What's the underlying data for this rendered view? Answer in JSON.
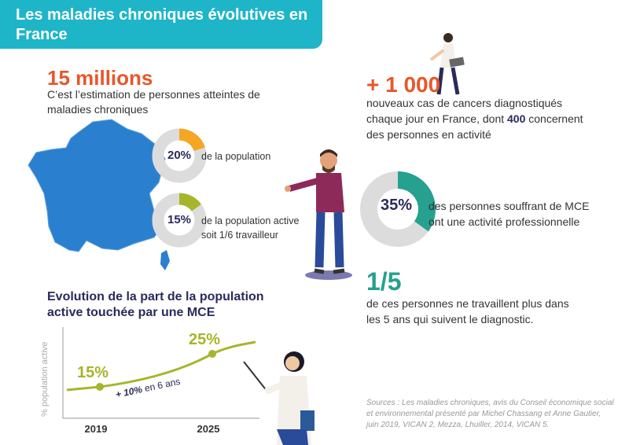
{
  "header": {
    "title": "Les maladies chroniques évolutives en France"
  },
  "stat_millions": {
    "value": "15 millions",
    "description": "C’est l’estimation de personnes atteintes de maladies chroniques"
  },
  "donut_population": {
    "percent_label": "20%",
    "value": 20,
    "caption": "de la population",
    "color": "#f5a623"
  },
  "donut_active": {
    "percent_label": "15%",
    "value": 15,
    "caption_line1": "de la population active",
    "caption_line2": "soit 1/6 travailleur",
    "color": "#a6b52b"
  },
  "stat_cancers": {
    "value": "+ 1 000",
    "line1": "nouveaux cas de cancers diagnostiqués",
    "line2_before": "chaque jour en France, dont ",
    "line2_bold": "400",
    "line2_after": " concernent",
    "line3": "des personnes en activité"
  },
  "donut_mce": {
    "percent_label": "35%",
    "value": 35,
    "caption_line1": "des personnes souffrant de MCE",
    "caption_line2": "ont une activité professionnelle",
    "color": "#26a08f"
  },
  "stat_fraction": {
    "value": "1/5",
    "line1": "de ces personnes ne travaillent plus dans",
    "line2": "les 5 ans qui suivent le diagnostic."
  },
  "evolution": {
    "title_line1": "Evolution de la part de la population",
    "title_line2": "active touchée par une MCE"
  },
  "chart_data": {
    "type": "line",
    "x": [
      "2019",
      "2025"
    ],
    "values": [
      15,
      25
    ],
    "point_labels": [
      "15%",
      "25%"
    ],
    "ylabel": "% population active",
    "annotation_bold": "+ 10%",
    "annotation_rest": " en 6 ans",
    "color": "#a6b52b"
  },
  "sources": {
    "line1": "Sources : Les maladies chroniques, avis du Conseil économique social",
    "line2": "et environnemental présenté par Michel Chassang et Anne Gautier,",
    "line3": "juin 2019, VICAN 2, Mezza, Lhuiller, 2014, VICAN 5."
  },
  "colors": {
    "header": "#1fb5c8",
    "orange": "#e8562a",
    "navy": "#2a2a5c",
    "teal": "#26a08f",
    "map_blue": "#2b7fcf"
  }
}
